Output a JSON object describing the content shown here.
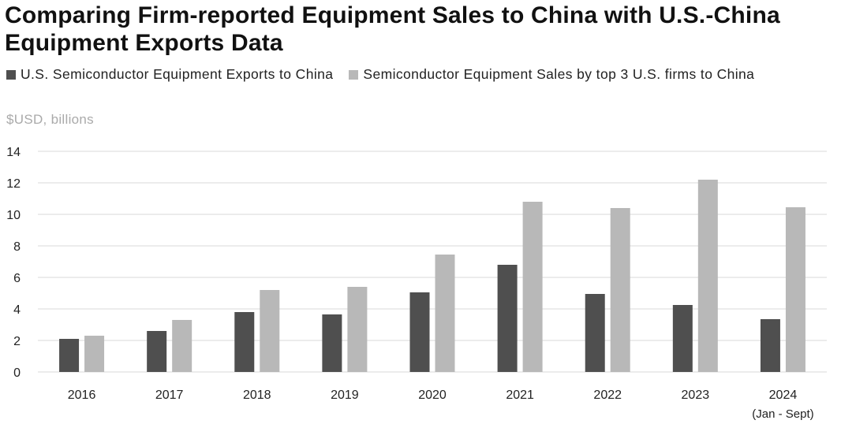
{
  "colors": {
    "exports": "#4f4f4f",
    "sales": "#b8b8b8",
    "grid": "#d9d9d9"
  },
  "legend": {
    "exports_label": "U.S. Semiconductor Equipment Exports to China",
    "sales_label": "Semiconductor Equipment Sales by top 3 U.S. firms to China"
  },
  "chart_data": {
    "type": "bar",
    "title": "Comparing Firm-reported Equipment Sales to China with U.S.-China Equipment Exports Data",
    "ylabel": "$USD, billions",
    "xlabel": "",
    "ylim": [
      0,
      14
    ],
    "yticks": [
      0,
      2,
      4,
      6,
      8,
      10,
      12,
      14
    ],
    "grid": true,
    "legend_position": "top-left",
    "categories": [
      "2016",
      "2017",
      "2018",
      "2019",
      "2020",
      "2021",
      "2022",
      "2023",
      "2024"
    ],
    "category_note": {
      "index": 8,
      "text": "(Jan - Sept)"
    },
    "series": [
      {
        "name": "U.S. Semiconductor Equipment Exports to China",
        "values": [
          2.1,
          2.6,
          3.8,
          3.65,
          5.05,
          6.8,
          4.95,
          4.25,
          3.35
        ]
      },
      {
        "name": "Semiconductor Equipment Sales by top 3 U.S. firms to China",
        "values": [
          2.3,
          3.3,
          5.2,
          5.4,
          7.45,
          10.8,
          10.4,
          12.2,
          10.45
        ]
      }
    ]
  }
}
